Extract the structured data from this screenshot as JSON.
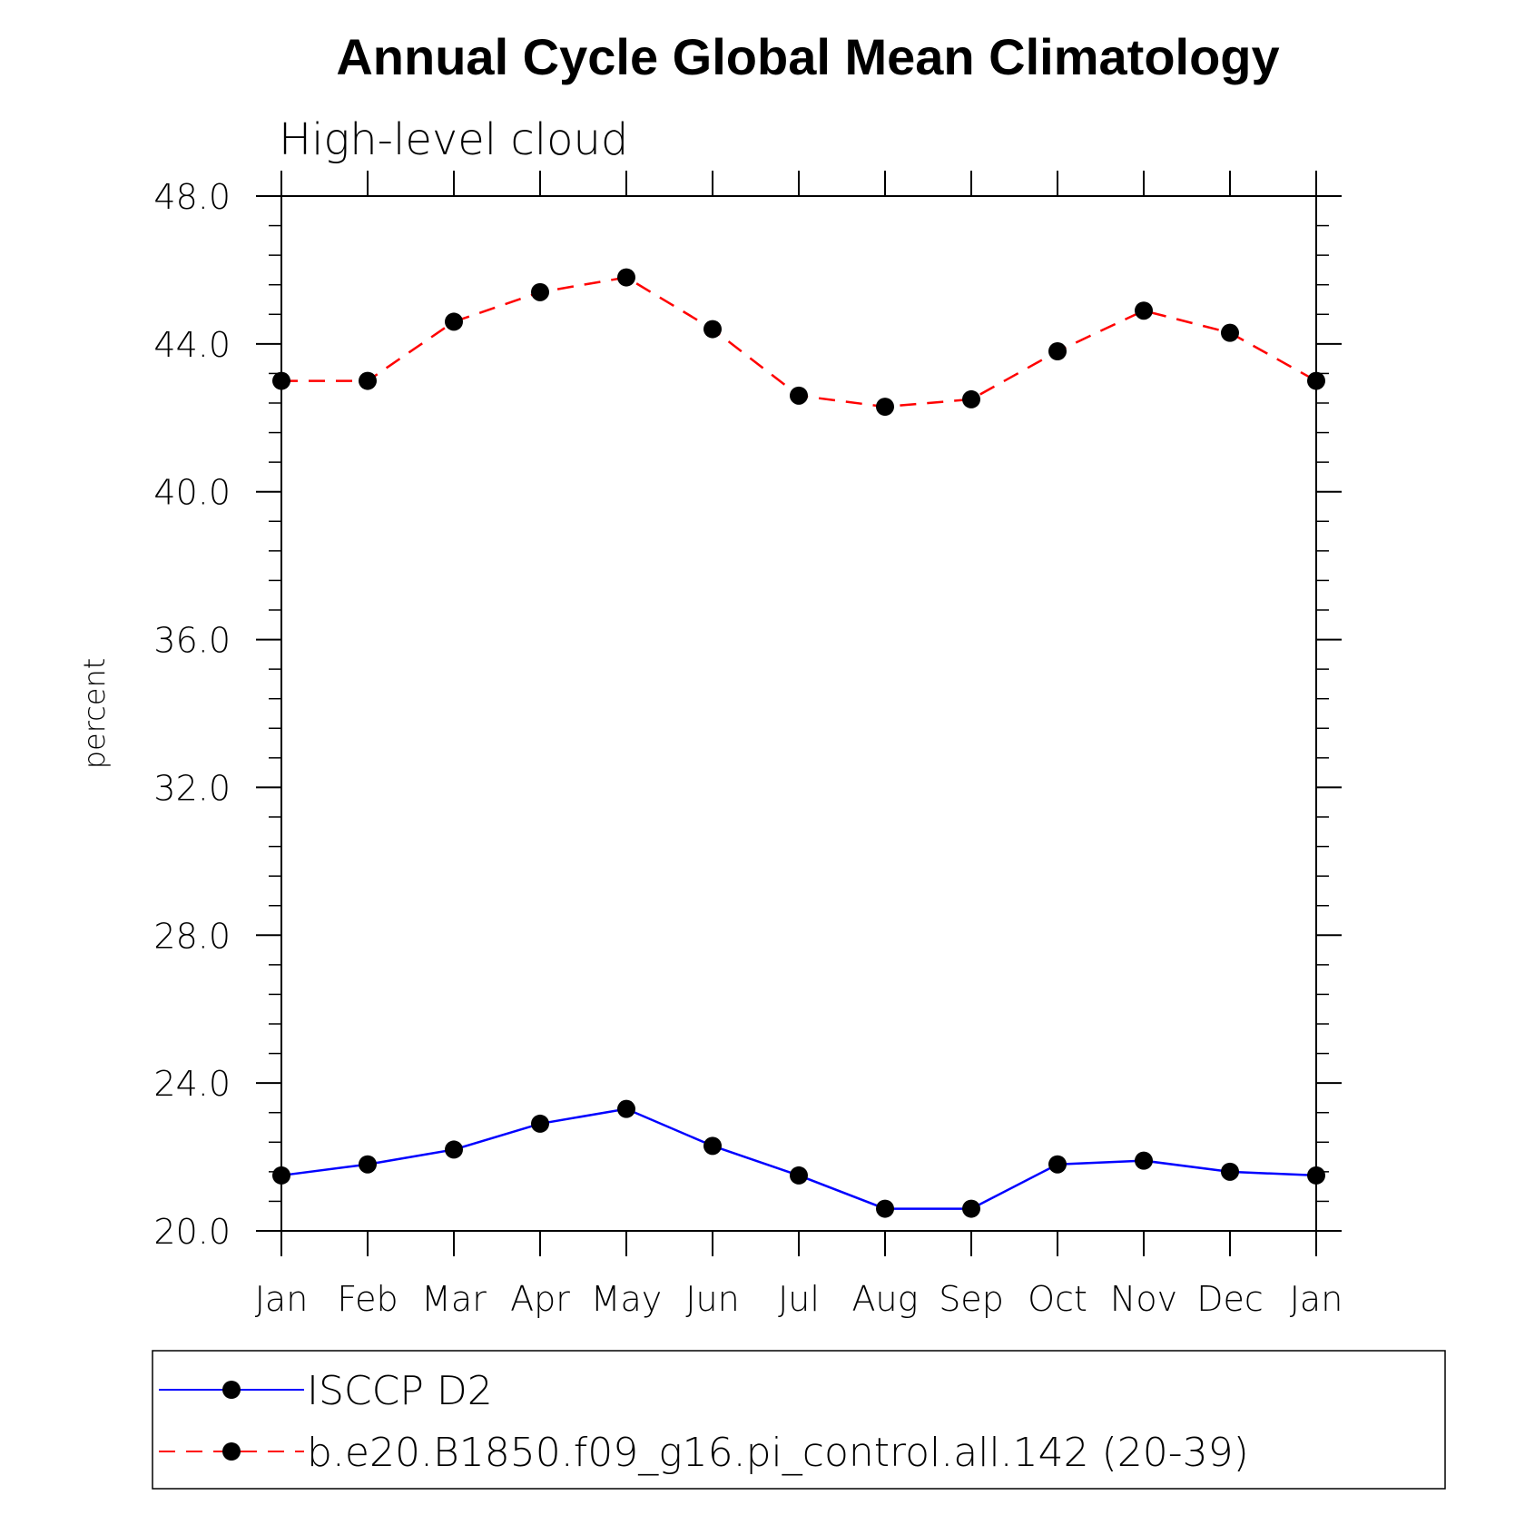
{
  "chart_data": {
    "type": "line",
    "title": "Annual Cycle Global Mean Climatology",
    "subtitle": "High-level cloud",
    "ylabel": "percent",
    "xlabel": "",
    "categories": [
      "Jan",
      "Feb",
      "Mar",
      "Apr",
      "May",
      "Jun",
      "Jul",
      "Aug",
      "Sep",
      "Oct",
      "Nov",
      "Dec",
      "Jan"
    ],
    "ylim": [
      20.0,
      48.0
    ],
    "yticks": [
      "20.0",
      "24.0",
      "28.0",
      "32.0",
      "36.0",
      "40.0",
      "44.0",
      "48.0"
    ],
    "grid": false,
    "legend_position": "bottom",
    "series": [
      {
        "name": "ISCCP D2",
        "color": "#0000ff",
        "dash": "solid",
        "marker": "filled-circle",
        "values": [
          21.5,
          21.8,
          22.2,
          22.9,
          23.3,
          22.3,
          21.5,
          20.6,
          20.6,
          21.8,
          21.9,
          21.6,
          21.5
        ]
      },
      {
        "name": "b.e20.B1850.f09_g16.pi_control.all.142 (20-39)",
        "color": "#ff0000",
        "dash": "dashed",
        "marker": "filled-circle",
        "values": [
          43.0,
          43.0,
          44.6,
          45.4,
          45.8,
          44.4,
          42.6,
          42.3,
          42.5,
          43.8,
          44.9,
          44.3,
          43.0
        ]
      }
    ]
  }
}
